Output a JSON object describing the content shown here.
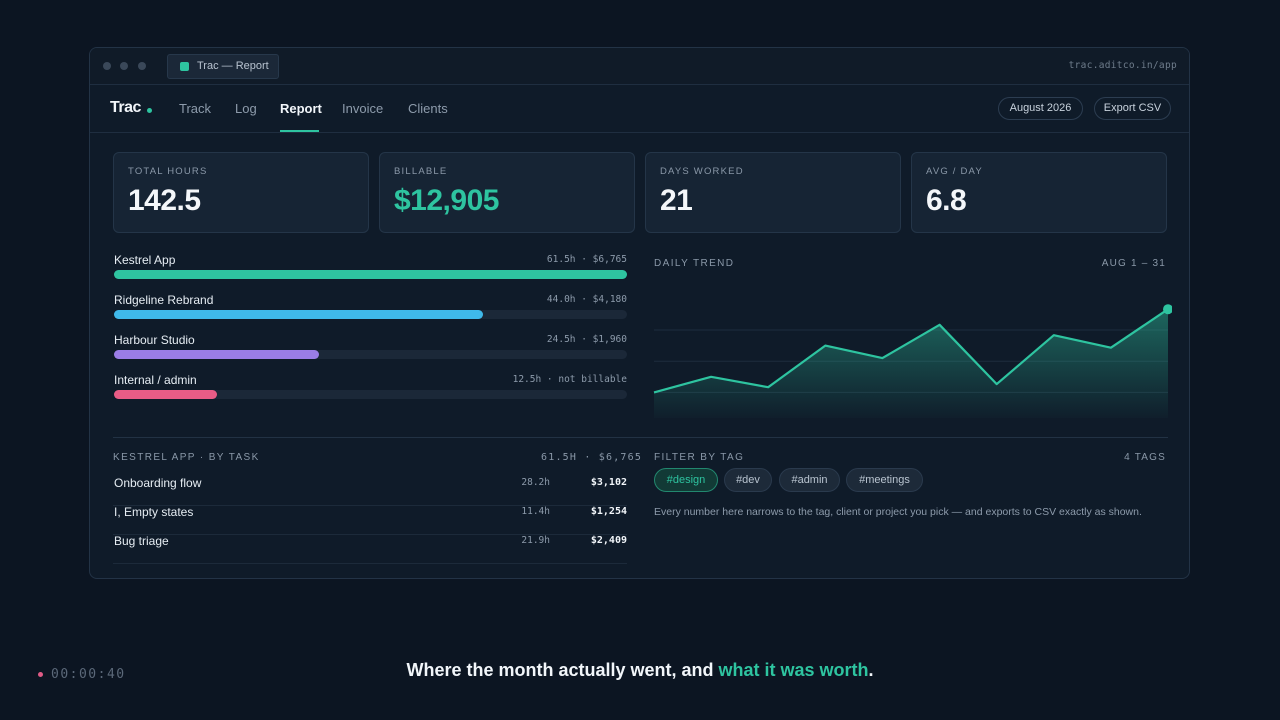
{
  "window": {
    "tab_title": "Trac — Report",
    "url": "trac.aditco.in/app"
  },
  "nav": {
    "brand": "Trac",
    "items": [
      {
        "label": "Track"
      },
      {
        "label": "Log"
      },
      {
        "label": "Report",
        "active": true
      },
      {
        "label": "Invoice"
      },
      {
        "label": "Clients"
      }
    ],
    "period_button": "August 2026",
    "export_button": "Export CSV"
  },
  "stats": [
    {
      "label": "TOTAL HOURS",
      "value": "142.5"
    },
    {
      "label": "BILLABLE",
      "value": "$12,905"
    },
    {
      "label": "DAYS WORKED",
      "value": "21"
    },
    {
      "label": "AVG / DAY",
      "value": "6.8"
    }
  ],
  "projects": [
    {
      "name": "Kestrel App",
      "meta": "61.5h · $6,765",
      "fraction": 1.0,
      "color": "#2ec4a0"
    },
    {
      "name": "Ridgeline Rebrand",
      "meta": "44.0h · $4,180",
      "fraction": 0.72,
      "color": "#3fb9ea"
    },
    {
      "name": "Harbour Studio",
      "meta": "24.5h · $1,960",
      "fraction": 0.4,
      "color": "#9a7de6"
    },
    {
      "name": "Internal / admin",
      "meta": "12.5h · not billable",
      "fraction": 0.2,
      "color": "#e85c86"
    }
  ],
  "trend": {
    "title": "DAILY TREND",
    "range": "AUG 1 – 31",
    "line_color": "#2ec4a0"
  },
  "chart_data": {
    "type": "area",
    "title": "DAILY TREND",
    "x": [
      1,
      2,
      3,
      4,
      5,
      6,
      7,
      8,
      9,
      10
    ],
    "values": [
      1.5,
      3.0,
      2.0,
      6.0,
      4.8,
      8.0,
      2.3,
      7.0,
      5.8,
      9.5
    ],
    "ylim": [
      0,
      10
    ],
    "grid": true
  },
  "tasks": {
    "title": "KESTREL APP · BY TASK",
    "summary": "61.5H · $6,765",
    "rows": [
      {
        "name": "Onboarding flow",
        "hours": "28.2h",
        "amount": "$3,102"
      },
      {
        "name": "I, Empty states",
        "hours": "11.4h",
        "amount": "$1,254"
      },
      {
        "name": "Bug triage",
        "hours": "21.9h",
        "amount": "$2,409"
      }
    ]
  },
  "filter": {
    "title": "FILTER BY TAG",
    "count": "4 TAGS",
    "tags": [
      {
        "label": "#design",
        "active": true
      },
      {
        "label": "#dev"
      },
      {
        "label": "#admin"
      },
      {
        "label": "#meetings"
      }
    ],
    "description": "Every number here narrows to the tag, client or project you pick — and exports to CSV exactly as shown."
  },
  "footer": {
    "timecode": "00:00:40",
    "caption_lead": "Where the month actually went, and ",
    "caption_highlight": "what it was worth",
    "caption_end": "."
  }
}
